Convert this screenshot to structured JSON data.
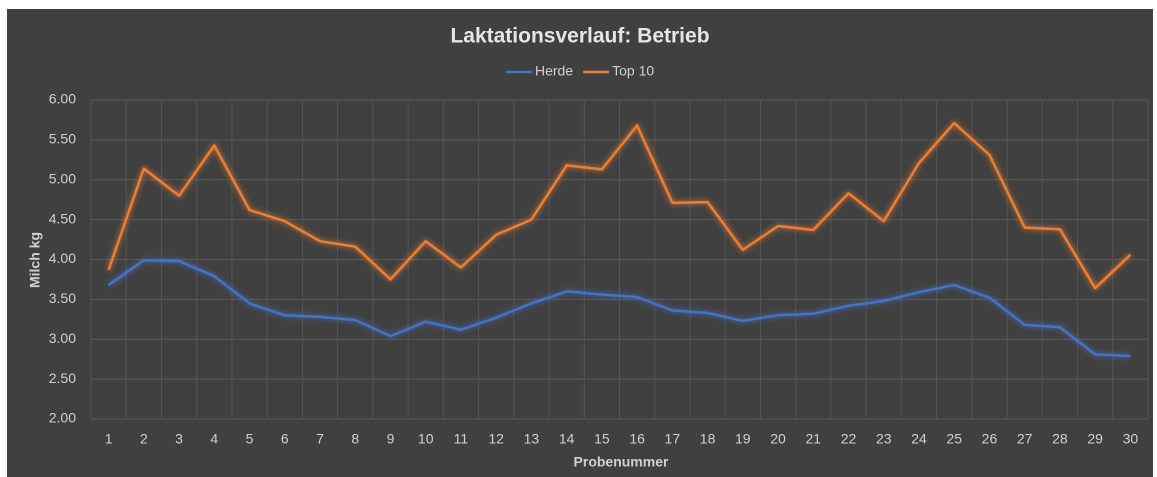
{
  "chart_data": {
    "type": "line",
    "title": "Laktationsverlauf: Betrieb",
    "x_label": "Probenummer",
    "y_label": "Milch kg",
    "categories": [
      1,
      2,
      3,
      4,
      5,
      6,
      7,
      8,
      9,
      10,
      11,
      12,
      13,
      14,
      15,
      16,
      17,
      18,
      19,
      20,
      21,
      22,
      23,
      24,
      25,
      26,
      27,
      28,
      29,
      30
    ],
    "series": [
      {
        "name": "Herde",
        "color": "#4472c4",
        "values": [
          3.68,
          3.99,
          3.98,
          3.79,
          3.45,
          3.3,
          3.28,
          3.24,
          3.04,
          3.22,
          3.12,
          3.27,
          3.45,
          3.6,
          3.56,
          3.53,
          3.36,
          3.33,
          3.23,
          3.3,
          3.32,
          3.42,
          3.48,
          3.59,
          3.68,
          3.52,
          3.18,
          3.15,
          2.81,
          2.79
        ]
      },
      {
        "name": "Top 10",
        "color": "#ed7d31",
        "values": [
          3.87,
          5.14,
          4.8,
          5.43,
          4.62,
          4.48,
          4.23,
          4.16,
          3.75,
          4.23,
          3.9,
          4.31,
          4.5,
          5.18,
          5.13,
          5.68,
          4.71,
          4.72,
          4.12,
          4.42,
          4.37,
          4.83,
          4.48,
          5.21,
          5.71,
          5.31,
          4.4,
          4.38,
          3.64,
          4.06
        ]
      }
    ],
    "ylim": [
      2,
      6
    ],
    "yticks": [
      {
        "value": 2,
        "label": "2.00"
      },
      {
        "value": 2.5,
        "label": "2.50"
      },
      {
        "value": 3,
        "label": "3.00"
      },
      {
        "value": 3.5,
        "label": "3.50"
      },
      {
        "value": 4,
        "label": "4.00"
      },
      {
        "value": 4.5,
        "label": "4.50"
      },
      {
        "value": 5,
        "label": "5.00"
      },
      {
        "value": 5.5,
        "label": "5.50"
      },
      {
        "value": 6,
        "label": "6.00"
      }
    ],
    "grid": true,
    "legend": "top"
  }
}
